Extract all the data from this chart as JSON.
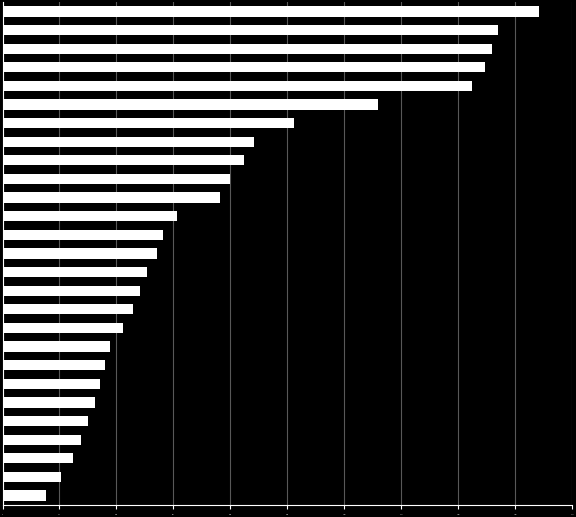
{
  "values": [
    1600,
    1480,
    1460,
    1440,
    1400,
    1120,
    870,
    750,
    720,
    680,
    650,
    520,
    480,
    460,
    430,
    410,
    390,
    360,
    320,
    305,
    290,
    275,
    255,
    235,
    210,
    175,
    130
  ],
  "bar_color": "#ffffff",
  "background_color": "#000000",
  "grid_color": "#ffffff",
  "xlim_max": 1700,
  "num_gridlines": 10,
  "bar_height": 0.55,
  "bar_gap": 0.45
}
